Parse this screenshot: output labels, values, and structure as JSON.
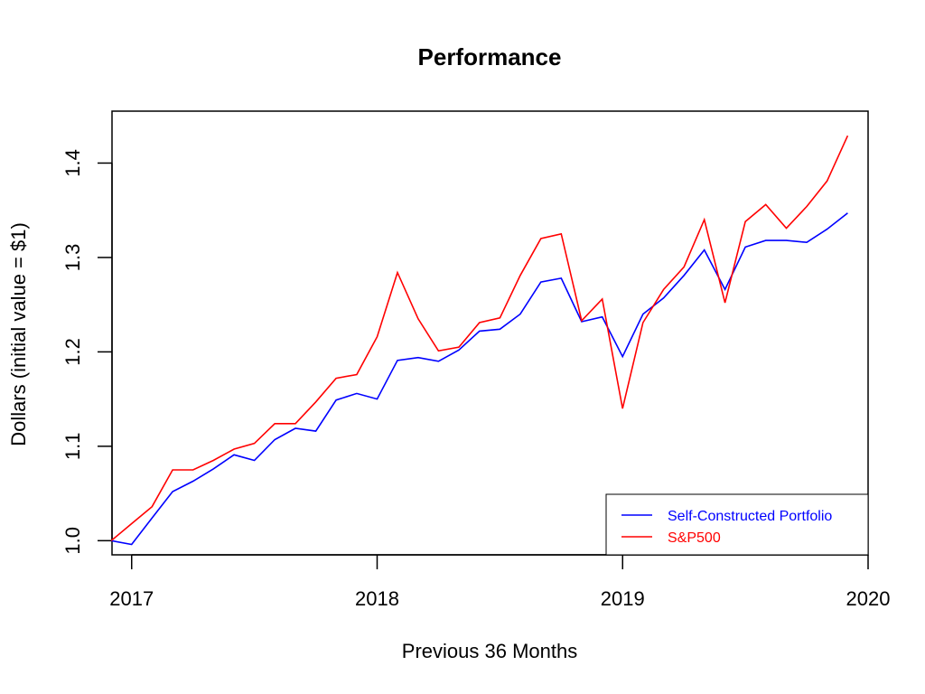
{
  "chart_data": {
    "type": "line",
    "title": "Performance",
    "xlabel": "Previous 36 Months",
    "ylabel": "Dollars (initial value = $1)",
    "xlim": [
      2016.92,
      2020.0
    ],
    "ylim": [
      0.985,
      1.455
    ],
    "x_ticks": [
      2017,
      2018,
      2019,
      2020
    ],
    "x_tick_labels": [
      "2017",
      "2018",
      "2019",
      "2020"
    ],
    "y_ticks": [
      1.0,
      1.1,
      1.2,
      1.3,
      1.4
    ],
    "y_tick_labels": [
      "1.0",
      "1.1",
      "1.2",
      "1.3",
      "1.4"
    ],
    "legend_position": "bottom-right",
    "grid": false,
    "series": [
      {
        "name": "Self-Constructed Portfolio",
        "color": "#0000ff",
        "x": [
          2016.917,
          2017.0,
          2017.083,
          2017.167,
          2017.25,
          2017.333,
          2017.417,
          2017.5,
          2017.583,
          2017.667,
          2017.75,
          2017.833,
          2017.917,
          2018.0,
          2018.083,
          2018.167,
          2018.25,
          2018.333,
          2018.417,
          2018.5,
          2018.583,
          2018.667,
          2018.75,
          2018.833,
          2018.917,
          2019.0,
          2019.083,
          2019.167,
          2019.25,
          2019.333,
          2019.417,
          2019.5,
          2019.583,
          2019.667,
          2019.75,
          2019.833,
          2019.917
        ],
        "values": [
          1.0,
          0.996,
          1.024,
          1.052,
          1.063,
          1.076,
          1.091,
          1.085,
          1.107,
          1.119,
          1.116,
          1.149,
          1.156,
          1.15,
          1.191,
          1.194,
          1.19,
          1.202,
          1.222,
          1.224,
          1.24,
          1.274,
          1.278,
          1.232,
          1.237,
          1.195,
          1.24,
          1.257,
          1.281,
          1.308,
          1.266,
          1.311,
          1.318,
          1.318,
          1.316,
          1.33,
          1.347
        ]
      },
      {
        "name": "S&P500",
        "color": "#ff0000",
        "x": [
          2016.917,
          2017.0,
          2017.083,
          2017.167,
          2017.25,
          2017.333,
          2017.417,
          2017.5,
          2017.583,
          2017.667,
          2017.75,
          2017.833,
          2017.917,
          2018.0,
          2018.083,
          2018.167,
          2018.25,
          2018.333,
          2018.417,
          2018.5,
          2018.583,
          2018.667,
          2018.75,
          2018.833,
          2018.917,
          2019.0,
          2019.083,
          2019.167,
          2019.25,
          2019.333,
          2019.417,
          2019.5,
          2019.583,
          2019.667,
          2019.75,
          2019.833,
          2019.917
        ],
        "values": [
          1.0,
          1.018,
          1.036,
          1.075,
          1.075,
          1.085,
          1.097,
          1.103,
          1.124,
          1.124,
          1.147,
          1.172,
          1.176,
          1.216,
          1.284,
          1.235,
          1.201,
          1.205,
          1.231,
          1.236,
          1.281,
          1.32,
          1.325,
          1.233,
          1.256,
          1.14,
          1.231,
          1.266,
          1.29,
          1.34,
          1.252,
          1.338,
          1.356,
          1.331,
          1.354,
          1.381,
          1.429
        ]
      }
    ]
  }
}
